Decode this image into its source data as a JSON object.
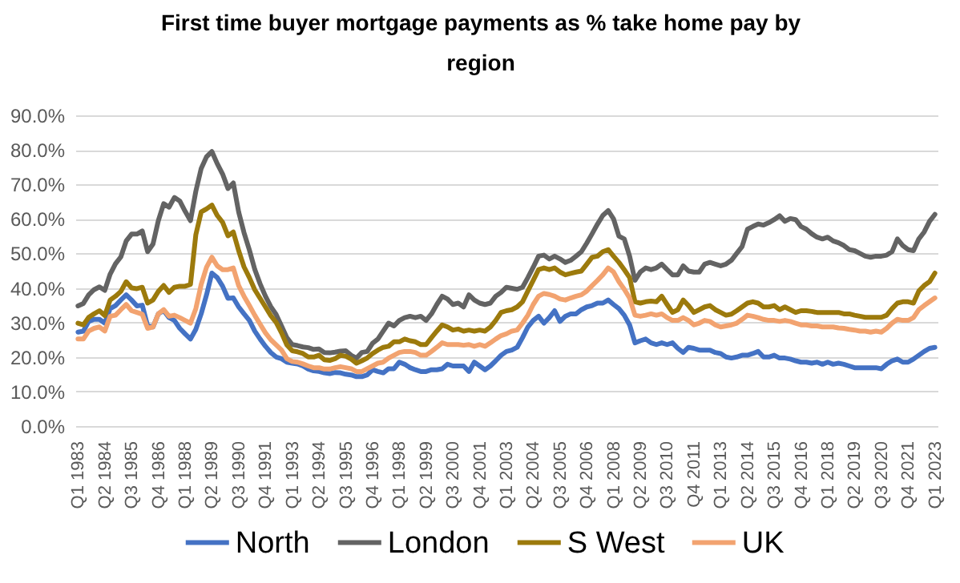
{
  "chart_data": {
    "type": "line",
    "title": "First time buyer mortgage payments as % take home pay by region",
    "categories": [
      "Q1 1983",
      null,
      null,
      null,
      null,
      "Q2 1984",
      null,
      null,
      null,
      null,
      "Q3 1985",
      null,
      null,
      null,
      null,
      "Q4 1986",
      null,
      null,
      null,
      null,
      "Q1 1988",
      null,
      null,
      null,
      null,
      "Q2 1989",
      null,
      null,
      null,
      null,
      "Q3 1990",
      null,
      null,
      null,
      null,
      "Q4 1991",
      null,
      null,
      null,
      null,
      "Q1 1993",
      null,
      null,
      null,
      null,
      "Q2 1994",
      null,
      null,
      null,
      null,
      "Q3 1995",
      null,
      null,
      null,
      null,
      "Q4 1996",
      null,
      null,
      null,
      null,
      "Q1 1998",
      null,
      null,
      null,
      null,
      "Q2 1999",
      null,
      null,
      null,
      null,
      "Q3 2000",
      null,
      null,
      null,
      null,
      "Q4 2001",
      null,
      null,
      null,
      null,
      "Q1 2003",
      null,
      null,
      null,
      null,
      "Q2 2004",
      null,
      null,
      null,
      null,
      "Q3 2005",
      null,
      null,
      null,
      null,
      "Q4 2006",
      null,
      null,
      null,
      null,
      "Q1 2008",
      null,
      null,
      null,
      null,
      "Q2 2009",
      null,
      null,
      null,
      null,
      "Q3 2010",
      null,
      null,
      null,
      null,
      "Q4 2011",
      null,
      null,
      null,
      null,
      "Q1 2013",
      null,
      null,
      null,
      null,
      "Q2 2014",
      null,
      null,
      null,
      null,
      "Q3 2015",
      null,
      null,
      null,
      null,
      "Q4 2016",
      null,
      null,
      null,
      null,
      "Q1 2018",
      null,
      null,
      null,
      null,
      "Q2 2019",
      null,
      null,
      null,
      null,
      "Q3 2020",
      null,
      null,
      null,
      null,
      "Q4 2021",
      null,
      null,
      null,
      null,
      "Q1 2023"
    ],
    "series": [
      {
        "name": "North",
        "color": "#4472c4",
        "values": [
          27.2,
          27.5,
          30.3,
          30.9,
          30.9,
          29.8,
          34,
          34.9,
          36.5,
          38,
          36.5,
          34.8,
          35,
          29,
          28.7,
          32.5,
          33.4,
          31.4,
          30.6,
          28.3,
          26.7,
          25.2,
          28,
          32.5,
          38,
          44.3,
          43,
          40.5,
          37,
          37.1,
          34.5,
          32.5,
          30.6,
          27.5,
          25.2,
          23.1,
          21.3,
          20,
          19.5,
          18.5,
          18.2,
          18,
          17.4,
          16.5,
          16,
          15.8,
          15.4,
          15.2,
          15.5,
          15.4,
          15,
          14.8,
          14.3,
          14.3,
          14.8,
          16.3,
          15.8,
          15.4,
          16.6,
          16.6,
          18.5,
          17.9,
          16.9,
          16.3,
          15.8,
          15.8,
          16.3,
          16.3,
          16.6,
          17.9,
          17.4,
          17.4,
          17.4,
          15.8,
          18.5,
          17.4,
          16.3,
          17.4,
          18.9,
          20.5,
          21.6,
          22,
          22.8,
          25.6,
          28.7,
          30.6,
          31.8,
          29.8,
          31.4,
          33.4,
          30.3,
          31.8,
          32.5,
          32.5,
          33.7,
          34.5,
          34.9,
          35.6,
          35.6,
          36.5,
          35.2,
          34,
          32.1,
          29.3,
          24.1,
          24.7,
          25.2,
          24.1,
          23.6,
          24.1,
          23.6,
          24.1,
          22.5,
          21.3,
          22.8,
          22.5,
          22,
          22,
          22,
          21.3,
          21,
          20,
          19.7,
          20,
          20.5,
          20.5,
          21,
          21.6,
          20,
          20,
          20.5,
          19.7,
          19.7,
          19.4,
          18.9,
          18.5,
          18.5,
          18.2,
          18.5,
          17.9,
          18.5,
          17.9,
          18.2,
          17.9,
          17.4,
          16.9,
          16.9,
          16.9,
          16.9,
          16.9,
          16.6,
          17.9,
          18.9,
          19.4,
          18.5,
          18.5,
          19.4,
          20.5,
          21.6,
          22.5,
          22.8
        ]
      },
      {
        "name": "London",
        "color": "#636363",
        "values": [
          34.8,
          35.5,
          38,
          39.5,
          40.3,
          39.3,
          44,
          47,
          49,
          53.6,
          55.6,
          55.6,
          56.5,
          50.5,
          52.7,
          59.5,
          64.4,
          63.4,
          66.2,
          65.2,
          62.2,
          59.5,
          68,
          74.6,
          78,
          79.5,
          76,
          73,
          68.8,
          70.4,
          62,
          56,
          51,
          45.4,
          41.2,
          37.6,
          34.6,
          32.3,
          29,
          25.6,
          23.6,
          23.3,
          22.9,
          22.7,
          22.2,
          22.3,
          21.3,
          21.2,
          21.4,
          21.7,
          21.8,
          20.5,
          19.7,
          21.3,
          21.6,
          24,
          25.2,
          27.5,
          29.8,
          29,
          30.6,
          31.4,
          31.8,
          31.4,
          31.8,
          30.6,
          32.5,
          35.2,
          37.6,
          36.8,
          35.2,
          35.6,
          34.5,
          38,
          36.5,
          35.6,
          35.2,
          35.6,
          37.6,
          38.7,
          40.2,
          39.9,
          39.6,
          40.2,
          43,
          46,
          49.2,
          49.5,
          48.4,
          49.2,
          48.4,
          47.4,
          48,
          49.2,
          50.5,
          53,
          55.7,
          58.5,
          61,
          62.4,
          60,
          55,
          54.2,
          49.2,
          42.2,
          44.6,
          45.8,
          45.3,
          45.8,
          46.9,
          45.3,
          43.8,
          43.8,
          46.4,
          44.9,
          44.6,
          44.6,
          46.9,
          47.4,
          46.9,
          46.4,
          46.9,
          48,
          50,
          52,
          57,
          57.8,
          58.5,
          58.2,
          58.9,
          59.8,
          60.9,
          59.3,
          60.1,
          59.8,
          57.8,
          57,
          55.7,
          54.7,
          54.2,
          54.7,
          53.6,
          53.1,
          52.3,
          51.1,
          50.8,
          50,
          49.2,
          48.9,
          49.2,
          49.2,
          49.5,
          50.5,
          54.2,
          52.3,
          51.1,
          50.8,
          54.2,
          56.2,
          59.3,
          61.3
        ]
      },
      {
        "name": "S West",
        "color": "#9c7a0c",
        "values": [
          29.8,
          29.3,
          31.5,
          32.5,
          33.4,
          32,
          36.5,
          37.6,
          39,
          41.8,
          40,
          39.8,
          40.2,
          35.6,
          36.5,
          39,
          40.7,
          38.7,
          40.2,
          40.5,
          40.5,
          41,
          55.4,
          62,
          62.9,
          64,
          61,
          59,
          55.1,
          56.2,
          50.8,
          46.1,
          43,
          39.5,
          37,
          34.5,
          32,
          30,
          27,
          23.5,
          21.8,
          21.5,
          21,
          20,
          20,
          20.5,
          19.2,
          19,
          19.5,
          20.5,
          20.2,
          19.4,
          18.2,
          18.9,
          19.7,
          21,
          22,
          22.8,
          23.1,
          24.4,
          24.4,
          25.2,
          24.7,
          24.4,
          23.6,
          23.6,
          25.6,
          27.5,
          29.3,
          28.7,
          27.8,
          28.1,
          27.5,
          27.8,
          27.5,
          27.8,
          27.5,
          28.7,
          30.6,
          32.9,
          33.4,
          33.7,
          34.5,
          36,
          39.1,
          42.2,
          45.3,
          45.8,
          45.3,
          45.8,
          44.6,
          43.8,
          44.2,
          44.6,
          44.9,
          46.9,
          48.9,
          49.2,
          50.5,
          51.1,
          49.2,
          47.4,
          45.3,
          43,
          36,
          35.6,
          36,
          36.2,
          36,
          37.6,
          35.2,
          32.9,
          33.7,
          36.5,
          34.9,
          32.9,
          33.7,
          34.5,
          34.9,
          33.7,
          32.9,
          32.1,
          32.4,
          33.4,
          34.5,
          35.6,
          36,
          35.6,
          34.5,
          34.5,
          34.9,
          33.7,
          34.5,
          33.7,
          32.9,
          33.4,
          33.4,
          33.2,
          32.9,
          32.9,
          32.9,
          32.9,
          32.9,
          32.5,
          32.5,
          32.1,
          31.8,
          31.5,
          31.5,
          31.5,
          31.5,
          32.1,
          34,
          35.6,
          36,
          36,
          35.6,
          39.1,
          40.7,
          41.8,
          44.3
        ]
      },
      {
        "name": "UK",
        "color": "#f2a370",
        "values": [
          25.2,
          25.2,
          27.5,
          28.3,
          28.7,
          27.5,
          31.8,
          32.1,
          33.7,
          35.2,
          33.4,
          32.9,
          32.4,
          28.3,
          28.7,
          32.5,
          33.7,
          31.8,
          32.1,
          31.4,
          30.6,
          29.8,
          34,
          41,
          46,
          48.9,
          46.4,
          45.3,
          45.3,
          45.8,
          40.7,
          37.6,
          34.9,
          32.1,
          29.5,
          27,
          25,
          23.5,
          22,
          19.5,
          18.7,
          18.5,
          18,
          17.4,
          16.9,
          16.9,
          16.5,
          16.5,
          16.9,
          17.2,
          16.9,
          16.6,
          15.8,
          15.8,
          16.6,
          17.4,
          18.2,
          18.5,
          19.7,
          20.5,
          21.3,
          21.6,
          21.6,
          21.3,
          20.5,
          20.5,
          21.6,
          22.8,
          24.1,
          23.6,
          23.6,
          23.6,
          23.4,
          23.6,
          23.1,
          23.6,
          23.1,
          24.1,
          25.2,
          26.2,
          26.7,
          27.5,
          27.8,
          29.8,
          32.1,
          35.2,
          37.6,
          38.4,
          38.1,
          37.6,
          36.8,
          36.5,
          37.1,
          37.6,
          38,
          39.1,
          40.7,
          42.2,
          43.8,
          45.8,
          44.6,
          41.8,
          39.6,
          37.1,
          32.1,
          31.8,
          32.1,
          32.5,
          32.1,
          32.5,
          31.4,
          30.6,
          30.6,
          31.4,
          30.6,
          29.3,
          29.8,
          30.6,
          30.3,
          29.3,
          28.7,
          29,
          29.3,
          29.8,
          30.9,
          32.1,
          31.8,
          31.4,
          30.9,
          30.6,
          30.6,
          30.3,
          30.6,
          30.3,
          29.8,
          29.3,
          29.3,
          29,
          29,
          28.7,
          28.7,
          28.7,
          28.4,
          28.3,
          28,
          27.8,
          27.5,
          27.5,
          27.2,
          27.5,
          27.2,
          28.3,
          29.8,
          30.9,
          30.6,
          30.6,
          31.4,
          33.7,
          34.9,
          36,
          37.1
        ]
      }
    ],
    "ylim": [
      0,
      90
    ],
    "yticks": [
      {
        "value": 0,
        "label": "0.0%"
      },
      {
        "value": 10,
        "label": "10.0%"
      },
      {
        "value": 20,
        "label": "20.0%"
      },
      {
        "value": 30,
        "label": "30.0%"
      },
      {
        "value": 40,
        "label": "40.0%"
      },
      {
        "value": 50,
        "label": "50.0%"
      },
      {
        "value": 60,
        "label": "60.0%"
      },
      {
        "value": 70,
        "label": "70.0%"
      },
      {
        "value": 80,
        "label": "80.0%"
      },
      {
        "value": 90,
        "label": "90.0%"
      }
    ],
    "grid": "y",
    "legend": "bottom"
  }
}
